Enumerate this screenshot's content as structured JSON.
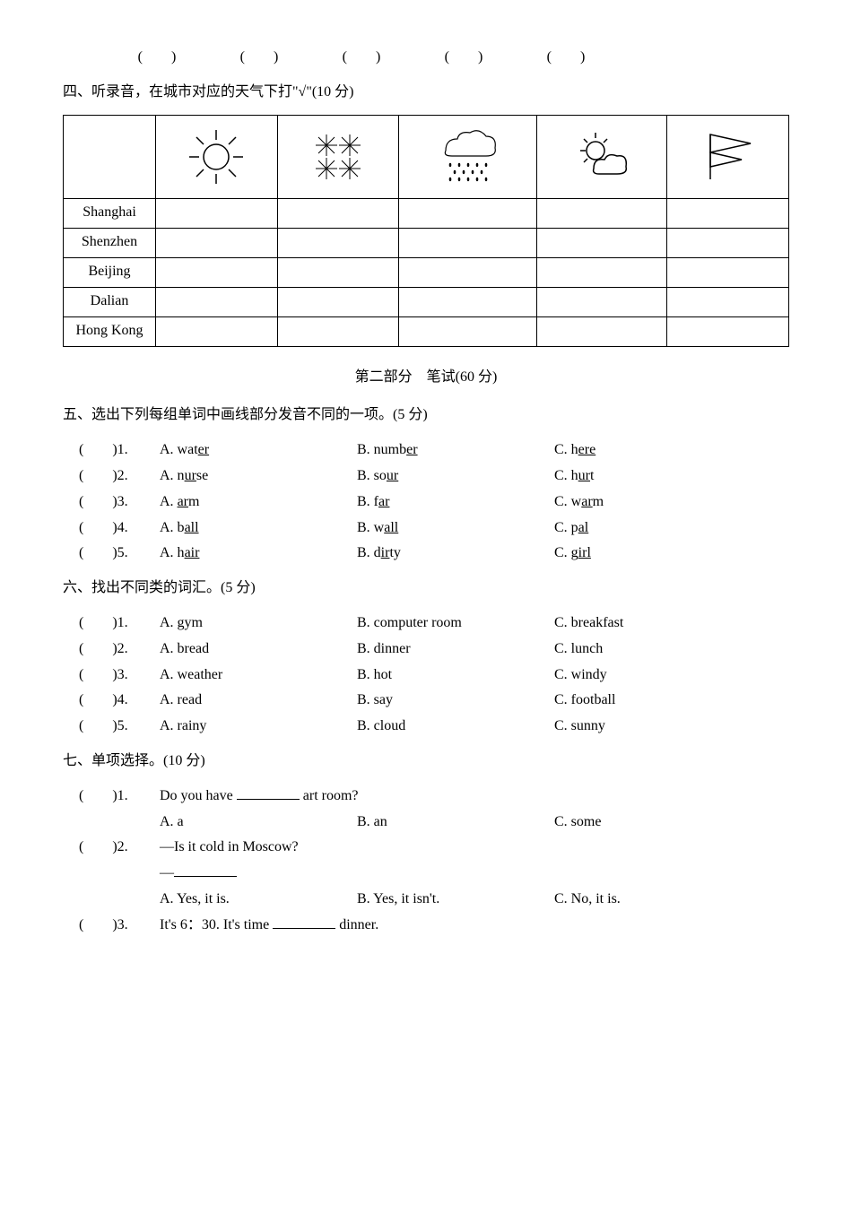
{
  "topRow": [
    "(　　)",
    "(　　)",
    "(　　)",
    "(　　)",
    "(　　)"
  ],
  "section4": {
    "title": "四、听录音，在城市对应的天气下打\"√\"(10 分)",
    "cities": [
      "Shanghai",
      "Shenzhen",
      "Beijing",
      "Dalian",
      "Hong Kong"
    ]
  },
  "part2Title": "第二部分　笔试(60 分)",
  "section5": {
    "title": "五、选出下列每组单词中画线部分发音不同的一项。(5 分)",
    "items": [
      {
        "n": "1",
        "a_pre": "A. wat",
        "a_u": "er",
        "a_post": "",
        "b_pre": "B. numb",
        "b_u": "er",
        "b_post": "",
        "c_pre": "C. h",
        "c_u": "ere",
        "c_post": ""
      },
      {
        "n": "2",
        "a_pre": "A. n",
        "a_u": "ur",
        "a_post": "se",
        "b_pre": "B. so",
        "b_u": "ur",
        "b_post": "",
        "c_pre": "C. h",
        "c_u": "ur",
        "c_post": "t"
      },
      {
        "n": "3",
        "a_pre": "A. ",
        "a_u": "ar",
        "a_post": "m",
        "b_pre": "B. f",
        "b_u": "ar",
        "b_post": "",
        "c_pre": "C. w",
        "c_u": "ar",
        "c_post": "m"
      },
      {
        "n": "4",
        "a_pre": "A. b",
        "a_u": "all",
        "a_post": "",
        "b_pre": "B. w",
        "b_u": "all",
        "b_post": "",
        "c_pre": "C. p",
        "c_u": "al",
        "c_post": ""
      },
      {
        "n": "5",
        "a_pre": "A. h",
        "a_u": "air",
        "a_post": "",
        "b_pre": "B. d",
        "b_u": "ir",
        "b_post": "ty",
        "c_pre": "C. g",
        "c_u": "irl",
        "c_post": ""
      }
    ]
  },
  "section6": {
    "title": "六、找出不同类的词汇。(5 分)",
    "items": [
      {
        "n": "1",
        "a": "A. gym",
        "b": "B. computer room",
        "c": "C. breakfast"
      },
      {
        "n": "2",
        "a": "A. bread",
        "b": "B. dinner",
        "c": "C. lunch"
      },
      {
        "n": "3",
        "a": "A. weather",
        "b": "B. hot",
        "c": "C. windy"
      },
      {
        "n": "4",
        "a": "A. read",
        "b": "B. say",
        "c": "C. football"
      },
      {
        "n": "5",
        "a": "A. rainy",
        "b": "B. cloud",
        "c": "C. sunny"
      }
    ]
  },
  "section7": {
    "title": "七、单项选择。(10 分)",
    "q1": {
      "paren": "(　　)1. ",
      "stem_pre": "Do you have ",
      "stem_post": " art room?",
      "a": "A. a",
      "b": "B. an",
      "c": "C. some"
    },
    "q2": {
      "paren": "(　　)2. ",
      "stem": "—Is it cold in Moscow?",
      "dash": "—",
      "a": "A. Yes, it is.",
      "b": "B. Yes, it isn't.",
      "c": "C. No, it is."
    },
    "q3": {
      "paren": "(　　)3. ",
      "stem_pre": "It's 6：30. It's time ",
      "stem_post": " dinner."
    }
  }
}
